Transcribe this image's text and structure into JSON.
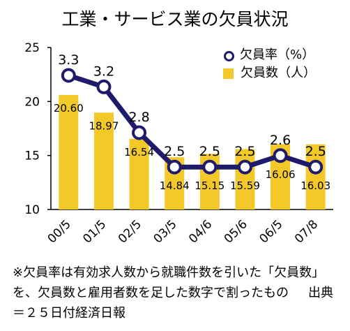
{
  "chart_data": {
    "type": "bar+line",
    "title": "工業・サービス業の欠員状況",
    "categories": [
      "00/5",
      "01/5",
      "02/5",
      "03/5",
      "04/6",
      "05/6",
      "06/5",
      "07/8"
    ],
    "ylim": [
      10,
      25
    ],
    "yticks": [
      "10",
      "15",
      "20",
      "25"
    ],
    "grid": false,
    "legend_position": "top-right",
    "series": [
      {
        "name": "欠員数（人）",
        "type": "bar",
        "color": "#f2c928",
        "values": [
          20.6,
          18.97,
          16.54,
          14.84,
          15.15,
          15.59,
          16.06,
          16.03
        ],
        "labels": [
          "20.60",
          "18.97",
          "16.54",
          "14.84",
          "15.15",
          "15.59",
          "16.06",
          "16.03"
        ]
      },
      {
        "name": "欠員率（%）",
        "type": "line",
        "color": "#1f1a6b",
        "values": [
          3.3,
          3.2,
          2.8,
          2.5,
          2.5,
          2.5,
          2.6,
          2.5
        ],
        "labels": [
          "3.3",
          "3.2",
          "2.8",
          "2.5",
          "2.5",
          "2.5",
          "2.6",
          "2.5"
        ]
      }
    ]
  },
  "note": {
    "text": "※欠員率は有効求人数から就職件数を引いた「欠員数」を、欠員数と雇用者数を足した数字で割ったもの",
    "source": "出典＝２５日付経済日報"
  }
}
